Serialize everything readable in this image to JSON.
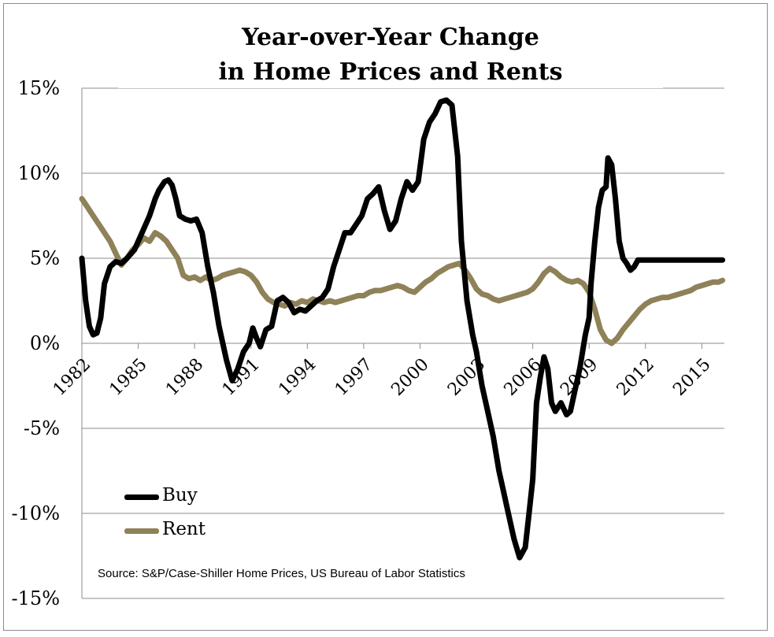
{
  "chart_data": {
    "type": "line",
    "title_line1": "Year-over-Year Change",
    "title_line2": "in Home Prices and Rents",
    "xlabel": "",
    "ylabel": "",
    "ylim": [
      -15,
      15
    ],
    "xlim": [
      1982,
      2016.2
    ],
    "x_ticks": [
      "1982",
      "1985",
      "1988",
      "1991",
      "1994",
      "1997",
      "2000",
      "2003",
      "2006",
      "2009",
      "2012",
      "2015"
    ],
    "y_ticks": [
      "15%",
      "10%",
      "5%",
      "0%",
      "-5%",
      "-10%",
      "-15%"
    ],
    "y_tick_values": [
      15,
      10,
      5,
      0,
      -5,
      -10,
      -15
    ],
    "grid": "horizontal",
    "legend_position": "bottom-left",
    "source": "Source: S&P/Case-Shiller Home Prices, US Bureau  of Labor Statistics",
    "series": [
      {
        "name": "Buy",
        "color": "#000000",
        "x": [
          1982.0,
          1982.2,
          1982.4,
          1982.6,
          1982.8,
          1983.0,
          1983.2,
          1983.5,
          1983.8,
          1984.1,
          1984.4,
          1984.8,
          1985.2,
          1985.6,
          1985.9,
          1986.1,
          1986.4,
          1986.6,
          1986.8,
          1987.0,
          1987.2,
          1987.5,
          1987.8,
          1988.1,
          1988.4,
          1988.7,
          1989.0,
          1989.3,
          1989.7,
          1990.0,
          1990.3,
          1990.6,
          1990.9,
          1991.1,
          1991.3,
          1991.5,
          1991.8,
          1992.1,
          1992.4,
          1992.7,
          1993.0,
          1993.3,
          1993.6,
          1993.9,
          1994.2,
          1994.5,
          1994.8,
          1995.1,
          1995.4,
          1995.7,
          1996.0,
          1996.3,
          1996.6,
          1996.9,
          1997.2,
          1997.5,
          1997.8,
          1998.1,
          1998.4,
          1998.7,
          1999.0,
          1999.3,
          1999.6,
          1999.9,
          2000.2,
          2000.5,
          2000.8,
          2001.1,
          2001.4,
          2001.7,
          2002.0,
          2002.2,
          2002.5,
          2002.8,
          2003.0,
          2003.3,
          2003.6,
          2003.9,
          2004.2,
          2004.4,
          2004.7,
          2005.0,
          2005.3,
          2005.6,
          2005.8,
          2006.0,
          2006.2,
          2006.4,
          2006.6,
          2006.8,
          2007.0,
          2007.2,
          2007.5,
          2007.8,
          2008.0,
          2008.2,
          2008.5,
          2008.8,
          2009.0,
          2009.1,
          2009.3,
          2009.5,
          2009.7,
          2009.9,
          2010.0,
          2010.2,
          2010.4,
          2010.6,
          2010.8,
          2011.0,
          2011.2,
          2011.4,
          2011.6,
          2011.8,
          2012.0,
          2012.3,
          2012.6,
          2012.8,
          2013.0,
          2013.2,
          2013.4,
          2013.6,
          2013.9,
          2014.1,
          2014.3,
          2014.5,
          2014.8,
          2015.0,
          2015.3,
          2015.6,
          2015.9,
          2016.1
        ],
        "values": [
          5.0,
          2.5,
          1.0,
          0.5,
          0.6,
          1.5,
          3.5,
          4.5,
          4.8,
          4.7,
          5.0,
          5.5,
          6.5,
          7.5,
          8.5,
          9.0,
          9.5,
          9.6,
          9.3,
          8.5,
          7.5,
          7.3,
          7.2,
          7.3,
          6.5,
          4.5,
          3.0,
          1.0,
          -1.0,
          -2.2,
          -1.5,
          -0.5,
          0.0,
          0.9,
          0.3,
          -0.2,
          0.8,
          1.0,
          2.5,
          2.7,
          2.4,
          1.8,
          2.0,
          1.9,
          2.2,
          2.5,
          2.7,
          3.2,
          4.5,
          5.5,
          6.5,
          6.5,
          7.0,
          7.5,
          8.5,
          8.8,
          9.2,
          7.8,
          6.7,
          7.2,
          8.5,
          9.5,
          9.0,
          9.5,
          12.0,
          13.0,
          13.5,
          14.2,
          14.3,
          14.0,
          11.0,
          6.0,
          2.5,
          0.5,
          -0.5,
          -2.5,
          -4.0,
          -5.5,
          -7.5,
          -8.5,
          -10.0,
          -11.5,
          -12.6,
          -12.0,
          -10.0,
          -8.0,
          -3.5,
          -2.0,
          -0.8,
          -1.5,
          -3.5,
          -4.0,
          -3.5,
          -4.2,
          -4.0,
          -3.0,
          -1.5,
          0.5,
          1.5,
          3.5,
          6.0,
          8.0,
          9.0,
          9.2,
          10.9,
          10.5,
          8.5,
          6.0,
          5.0,
          4.7,
          4.3,
          4.5,
          4.9,
          4.9,
          4.9,
          4.9,
          4.9,
          4.9,
          4.9,
          4.9,
          4.9,
          4.9,
          4.9,
          4.9,
          4.9,
          4.9,
          4.9,
          4.9,
          4.9,
          4.9,
          4.9,
          4.9
        ]
      },
      {
        "name": "Rent",
        "color": "#8f8158",
        "x": [
          1982.0,
          1982.3,
          1982.6,
          1982.9,
          1983.2,
          1983.5,
          1983.8,
          1984.1,
          1984.4,
          1984.7,
          1985.0,
          1985.3,
          1985.6,
          1985.9,
          1986.2,
          1986.5,
          1986.8,
          1987.1,
          1987.4,
          1987.7,
          1988.0,
          1988.3,
          1988.6,
          1988.9,
          1989.2,
          1989.5,
          1989.8,
          1990.1,
          1990.4,
          1990.7,
          1991.0,
          1991.3,
          1991.6,
          1991.9,
          1992.2,
          1992.5,
          1992.8,
          1993.1,
          1993.4,
          1993.7,
          1994.0,
          1994.3,
          1994.6,
          1994.9,
          1995.2,
          1995.5,
          1995.8,
          1996.1,
          1996.4,
          1996.7,
          1997.0,
          1997.3,
          1997.6,
          1997.9,
          1998.2,
          1998.5,
          1998.8,
          1999.1,
          1999.4,
          1999.7,
          2000.0,
          2000.3,
          2000.6,
          2000.9,
          2001.2,
          2001.5,
          2001.8,
          2002.1,
          2002.4,
          2002.7,
          2003.0,
          2003.3,
          2003.6,
          2003.9,
          2004.2,
          2004.5,
          2004.8,
          2005.1,
          2005.4,
          2005.7,
          2006.0,
          2006.3,
          2006.6,
          2006.9,
          2007.2,
          2007.5,
          2007.8,
          2008.1,
          2008.4,
          2008.7,
          2009.0,
          2009.3,
          2009.6,
          2009.9,
          2010.2,
          2010.5,
          2010.8,
          2011.1,
          2011.4,
          2011.7,
          2012.0,
          2012.3,
          2012.6,
          2012.9,
          2013.2,
          2013.5,
          2013.8,
          2014.1,
          2014.4,
          2014.7,
          2015.0,
          2015.3,
          2015.6,
          2015.9,
          2016.1
        ],
        "values": [
          8.5,
          8.0,
          7.5,
          7.0,
          6.5,
          6.0,
          5.3,
          4.6,
          5.0,
          5.5,
          5.8,
          6.2,
          6.0,
          6.5,
          6.3,
          6.0,
          5.5,
          5.0,
          4.0,
          3.8,
          3.9,
          3.7,
          3.9,
          3.7,
          3.8,
          4.0,
          4.1,
          4.2,
          4.3,
          4.2,
          4.0,
          3.6,
          3.0,
          2.6,
          2.4,
          2.3,
          2.2,
          2.4,
          2.3,
          2.5,
          2.4,
          2.6,
          2.5,
          2.4,
          2.5,
          2.4,
          2.5,
          2.6,
          2.7,
          2.8,
          2.8,
          3.0,
          3.1,
          3.1,
          3.2,
          3.3,
          3.4,
          3.3,
          3.1,
          3.0,
          3.3,
          3.6,
          3.8,
          4.1,
          4.3,
          4.5,
          4.6,
          4.7,
          4.3,
          3.8,
          3.2,
          2.9,
          2.8,
          2.6,
          2.5,
          2.6,
          2.7,
          2.8,
          2.9,
          3.0,
          3.2,
          3.6,
          4.1,
          4.4,
          4.2,
          3.9,
          3.7,
          3.6,
          3.7,
          3.5,
          3.0,
          2.0,
          0.8,
          0.2,
          0.0,
          0.3,
          0.8,
          1.2,
          1.6,
          2.0,
          2.3,
          2.5,
          2.6,
          2.7,
          2.7,
          2.8,
          2.9,
          3.0,
          3.1,
          3.3,
          3.4,
          3.5,
          3.6,
          3.6,
          3.7
        ]
      }
    ]
  }
}
